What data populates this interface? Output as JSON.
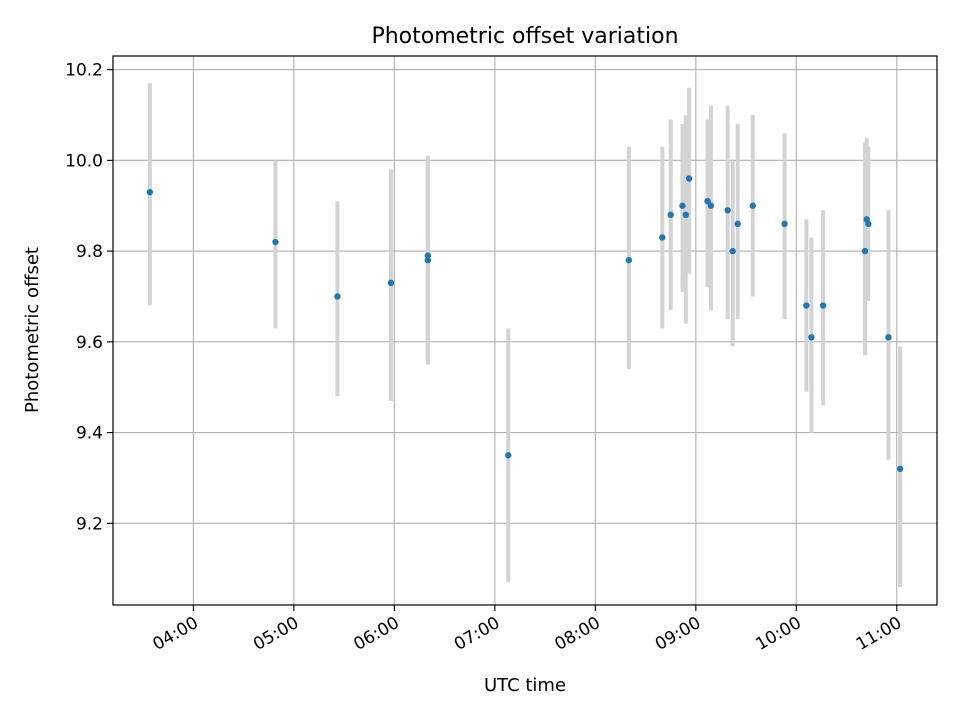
{
  "chart_data": {
    "type": "scatter",
    "title": "Photometric offset variation",
    "xlabel": "UTC time",
    "ylabel": "Photometric offset",
    "xlim": [
      "03:12",
      "11:24"
    ],
    "ylim": [
      9.02,
      10.23
    ],
    "x_ticks": [
      "04:00",
      "05:00",
      "06:00",
      "07:00",
      "08:00",
      "09:00",
      "10:00",
      "11:00"
    ],
    "y_ticks": [
      9.2,
      9.4,
      9.6,
      9.8,
      10.0,
      10.2
    ],
    "grid": true,
    "point_color": "#1f77b4",
    "errorbar_color": "#d3d3d3",
    "points": [
      {
        "x": "03:34",
        "y": 9.93,
        "low": 9.68,
        "high": 10.17
      },
      {
        "x": "04:49",
        "y": 9.82,
        "low": 9.63,
        "high": 10.0
      },
      {
        "x": "05:26",
        "y": 9.7,
        "low": 9.48,
        "high": 9.91
      },
      {
        "x": "05:58",
        "y": 9.73,
        "low": 9.47,
        "high": 9.98
      },
      {
        "x": "06:20",
        "y": 9.79,
        "low": 9.55,
        "high": 10.01
      },
      {
        "x": "06:20",
        "y": 9.78,
        "low": 9.55,
        "high": 10.01
      },
      {
        "x": "07:08",
        "y": 9.35,
        "low": 9.07,
        "high": 9.63
      },
      {
        "x": "08:20",
        "y": 9.78,
        "low": 9.54,
        "high": 10.03
      },
      {
        "x": "08:40",
        "y": 9.83,
        "low": 9.63,
        "high": 10.03
      },
      {
        "x": "08:45",
        "y": 9.88,
        "low": 9.67,
        "high": 10.09
      },
      {
        "x": "08:52",
        "y": 9.9,
        "low": 9.71,
        "high": 10.08
      },
      {
        "x": "08:54",
        "y": 9.88,
        "low": 9.64,
        "high": 10.1
      },
      {
        "x": "08:56",
        "y": 9.96,
        "low": 9.75,
        "high": 10.16
      },
      {
        "x": "09:07",
        "y": 9.91,
        "low": 9.72,
        "high": 10.09
      },
      {
        "x": "09:09",
        "y": 9.9,
        "low": 9.67,
        "high": 10.12
      },
      {
        "x": "09:19",
        "y": 9.89,
        "low": 9.65,
        "high": 10.12
      },
      {
        "x": "09:22",
        "y": 9.8,
        "low": 9.59,
        "high": 10.0
      },
      {
        "x": "09:25",
        "y": 9.86,
        "low": 9.65,
        "high": 10.08
      },
      {
        "x": "09:34",
        "y": 9.9,
        "low": 9.7,
        "high": 10.1
      },
      {
        "x": "09:53",
        "y": 9.86,
        "low": 9.65,
        "high": 10.06
      },
      {
        "x": "10:06",
        "y": 9.68,
        "low": 9.49,
        "high": 9.87
      },
      {
        "x": "10:09",
        "y": 9.61,
        "low": 9.4,
        "high": 9.83
      },
      {
        "x": "10:16",
        "y": 9.68,
        "low": 9.46,
        "high": 9.89
      },
      {
        "x": "10:41",
        "y": 9.8,
        "low": 9.57,
        "high": 10.04
      },
      {
        "x": "10:42",
        "y": 9.87,
        "low": 9.69,
        "high": 10.05
      },
      {
        "x": "10:43",
        "y": 9.86,
        "low": 9.69,
        "high": 10.03
      },
      {
        "x": "10:55",
        "y": 9.61,
        "low": 9.34,
        "high": 9.89
      },
      {
        "x": "11:02",
        "y": 9.32,
        "low": 9.06,
        "high": 9.59
      }
    ]
  }
}
